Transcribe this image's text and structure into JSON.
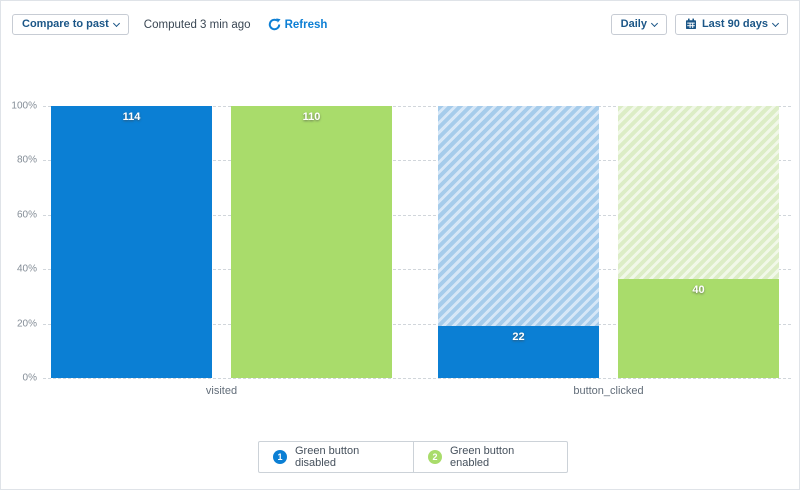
{
  "toolbar": {
    "compare_button": "Compare to past",
    "computed_text": "Computed 3 min ago",
    "refresh_link": "Refresh",
    "granularity_button": "Daily",
    "date_range_button": "Last 90 days"
  },
  "chart_data": {
    "type": "bar",
    "subtype": "funnel_conversion_percent_stacked",
    "title": "",
    "categories": [
      "visited",
      "button_clicked"
    ],
    "series": [
      {
        "name": "Green button disabled",
        "legend_number": "1",
        "color": "#0b7fd4",
        "stripe_colors": [
          "#a6cceb",
          "#d6e7f7"
        ],
        "values": [
          114,
          22
        ],
        "percents": [
          100,
          19.3
        ]
      },
      {
        "name": "Green button enabled",
        "legend_number": "2",
        "color": "#a9dc6b",
        "stripe_colors": [
          "#dcedc6",
          "#f1f8e8"
        ],
        "values": [
          110,
          40
        ],
        "percents": [
          100,
          36.4
        ]
      }
    ],
    "y_ticks": [
      "100%",
      "80%",
      "60%",
      "40%",
      "20%",
      "0%"
    ],
    "ylim": [
      0,
      100
    ],
    "grid": "horizontal-dashed",
    "legend_position": "bottom"
  }
}
